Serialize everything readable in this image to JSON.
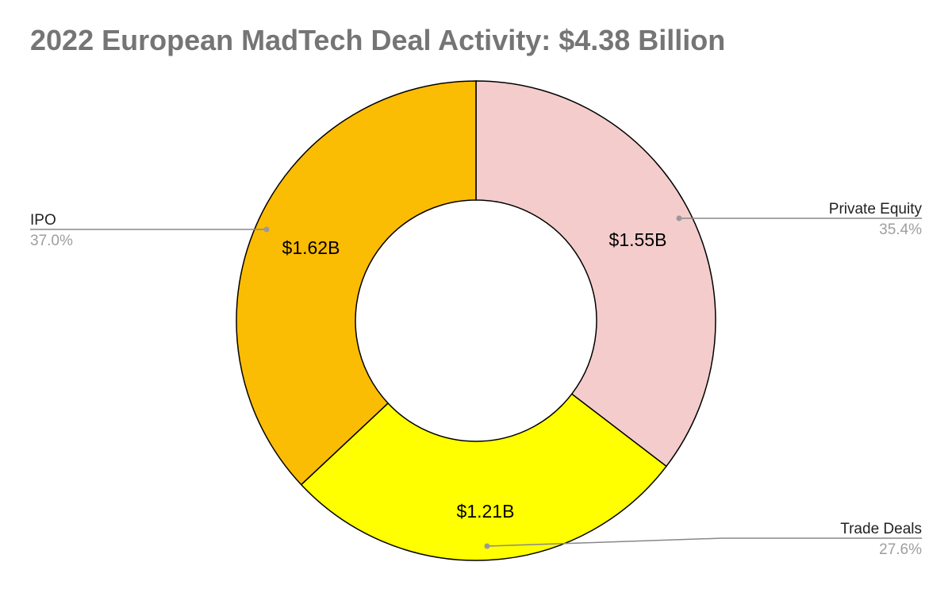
{
  "chart_data": {
    "type": "pie",
    "title": "2022 European MadTech Deal Activity: $4.38 Billion",
    "categories": [
      "Private Equity",
      "Trade Deals",
      "IPO"
    ],
    "values": [
      1.55,
      1.21,
      1.62
    ],
    "value_labels": [
      "$1.55B",
      "$1.21B",
      "$1.62B"
    ],
    "percent_labels": [
      "35.4%",
      "27.6%",
      "37.0%"
    ],
    "colors": [
      "#f4cccc",
      "#ffff00",
      "#fbbc04"
    ],
    "donut": true
  }
}
